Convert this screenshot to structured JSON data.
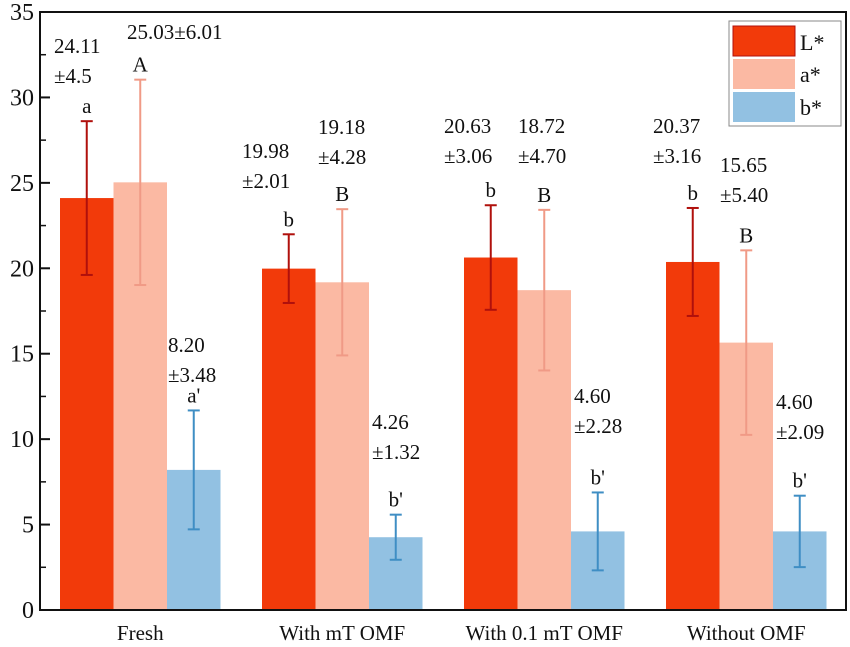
{
  "chart_data": {
    "type": "bar",
    "title": "",
    "xlabel": "",
    "ylabel": "",
    "ylim": [
      0,
      35
    ],
    "yticks": [
      0,
      5,
      10,
      15,
      20,
      25,
      30,
      35
    ],
    "categories": [
      "Fresh",
      "With mT OMF",
      "With 0.1 mT OMF",
      "Without OMF"
    ],
    "series": [
      {
        "name": "L*",
        "color": "#f23a0a",
        "error_color": "#b0100c",
        "values": [
          24.11,
          19.98,
          20.63,
          20.37
        ],
        "errors": [
          4.5,
          2.01,
          3.06,
          3.16
        ],
        "value_labels": [
          "24.11",
          "19.98",
          "20.63",
          "20.37"
        ],
        "error_labels": [
          "±4.5",
          "±2.01",
          "±3.06",
          "±3.16"
        ],
        "letters": [
          "a",
          "b",
          "b",
          "b"
        ]
      },
      {
        "name": "a*",
        "color": "#fbb9a3",
        "error_color": "#f09a86",
        "values": [
          25.03,
          19.18,
          18.72,
          15.65
        ],
        "errors": [
          6.01,
          4.28,
          4.7,
          5.4
        ],
        "value_labels": [
          "25.03",
          "19.18",
          "18.72",
          "15.65"
        ],
        "error_labels": [
          "±6.01",
          "±4.28",
          "±4.70",
          "±5.40"
        ],
        "combined_label_first": "25.03±6.01",
        "letters": [
          "A",
          "B",
          "B",
          "B"
        ]
      },
      {
        "name": "b*",
        "color": "#92c1e2",
        "error_color": "#3f8ec4",
        "values": [
          8.2,
          4.26,
          4.6,
          4.6
        ],
        "errors": [
          3.48,
          1.32,
          2.28,
          2.09
        ],
        "value_labels": [
          "8.20",
          "4.26",
          "4.60",
          "4.60"
        ],
        "error_labels": [
          "±3.48",
          "±1.32",
          "±2.28",
          "±2.09"
        ],
        "letters": [
          "a'",
          "b'",
          "b'",
          "b'"
        ]
      }
    ],
    "legend": {
      "position": "top-right",
      "entries": [
        "L*",
        "a*",
        "b*"
      ]
    },
    "grid": false
  }
}
